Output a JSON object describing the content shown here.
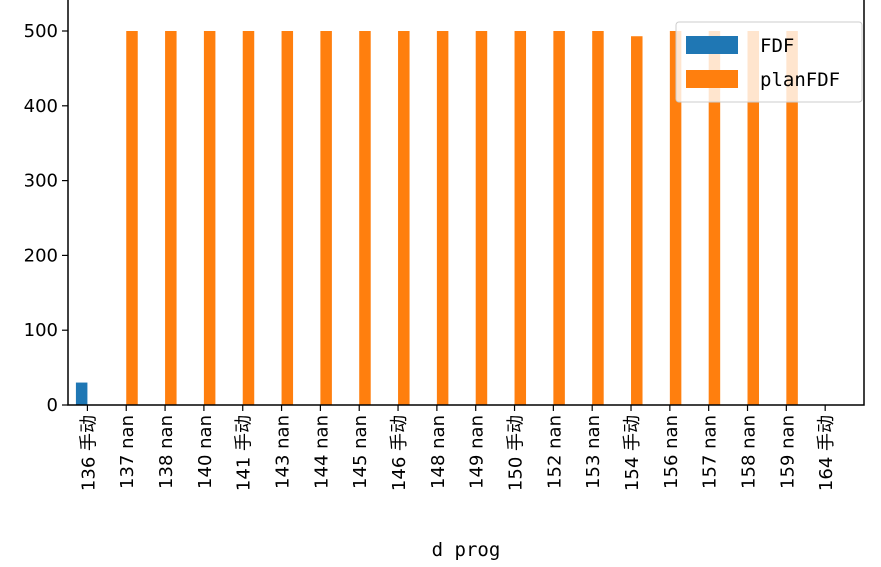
{
  "chart_data": {
    "type": "bar",
    "xlabel": "d prog",
    "ylabel": "",
    "ylim": [
      0,
      525
    ],
    "yticks": [
      0,
      100,
      200,
      300,
      400,
      500
    ],
    "categories": [
      "136 手动",
      "137 nan",
      "138 nan",
      "140 nan",
      "141 手动",
      "143 nan",
      "144 nan",
      "145 nan",
      "146 手动",
      "148 nan",
      "149 nan",
      "150 手动",
      "152 nan",
      "153 nan",
      "154 手动",
      "156 nan",
      "157 nan",
      "158 nan",
      "159 nan",
      "164 手动"
    ],
    "series": [
      {
        "name": "FDF",
        "color": "#1f77b4",
        "values": [
          30,
          0,
          0,
          0,
          0,
          0,
          0,
          0,
          0,
          0,
          0,
          0,
          0,
          0,
          0,
          0,
          0,
          0,
          0,
          0
        ]
      },
      {
        "name": "planFDF",
        "color": "#ff7f0e",
        "values": [
          0,
          500,
          500,
          500,
          500,
          500,
          500,
          500,
          500,
          500,
          500,
          500,
          500,
          500,
          493,
          500,
          500,
          500,
          500,
          0
        ]
      }
    ],
    "legend_position": "top-right",
    "grid": false
  }
}
